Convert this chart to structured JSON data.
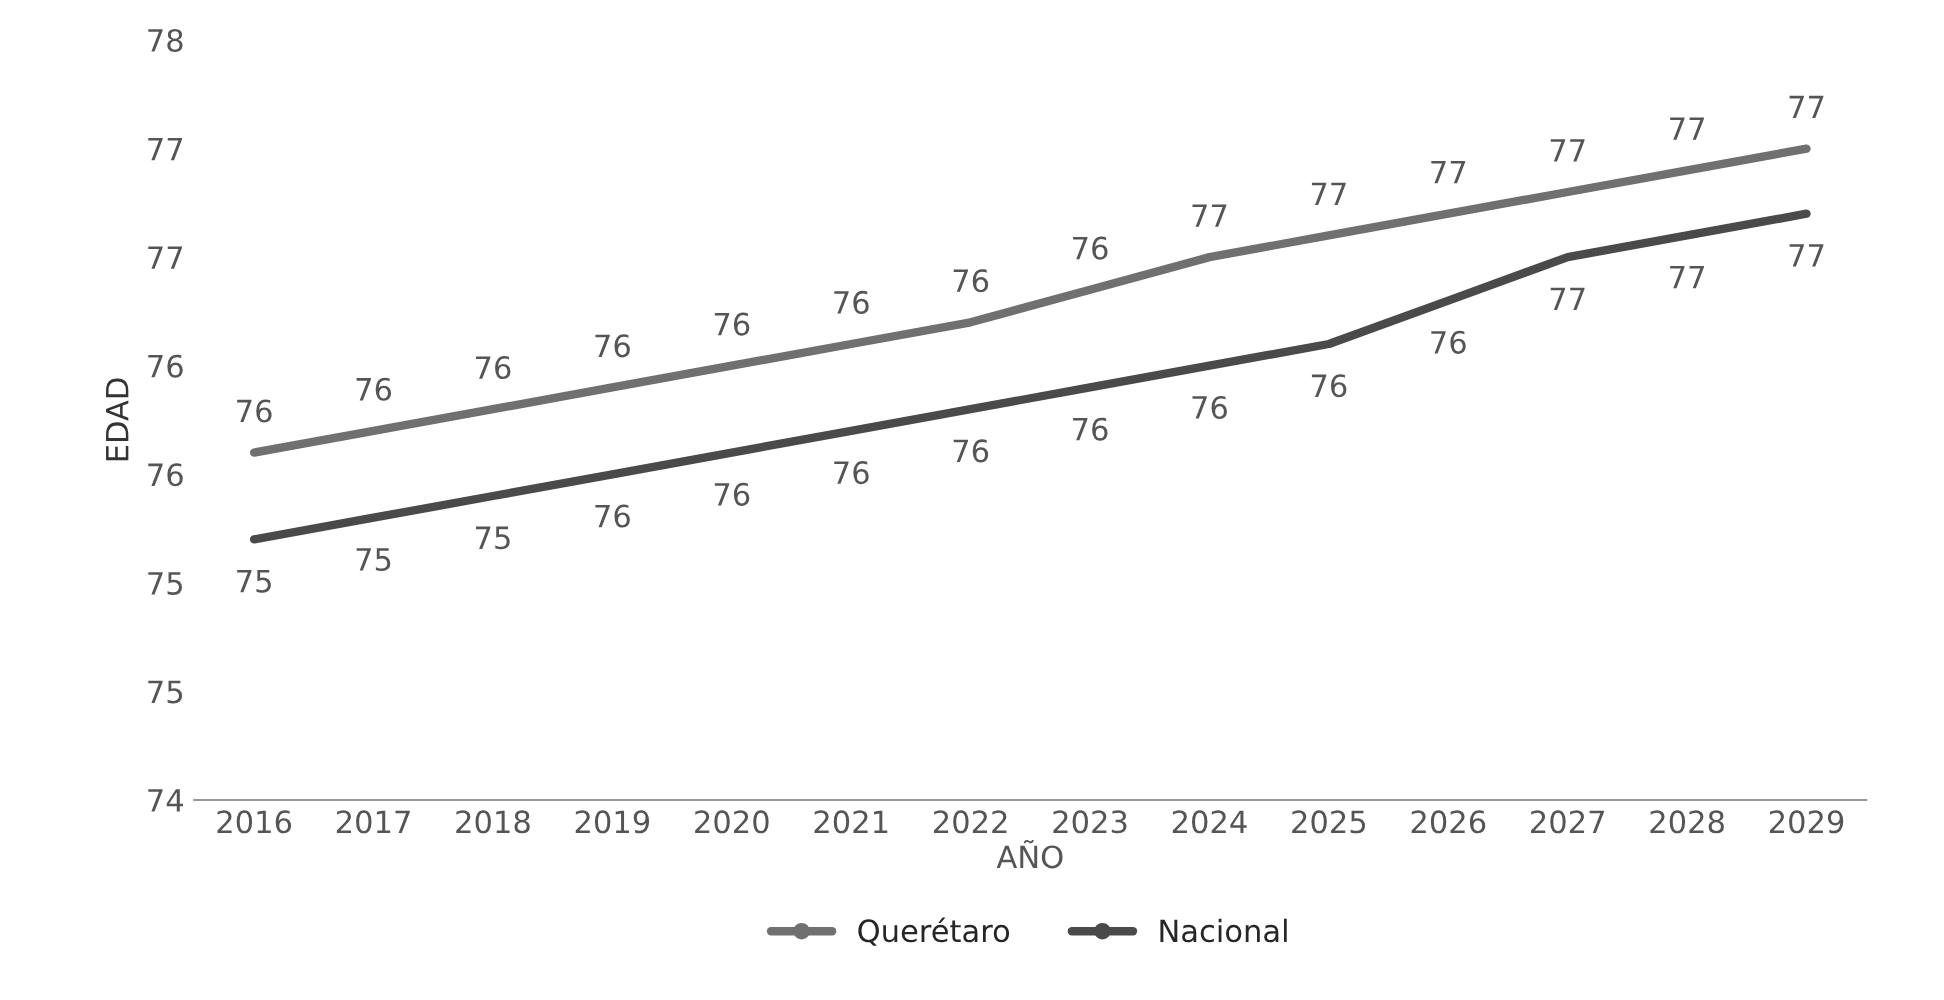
{
  "chart_data": {
    "type": "line",
    "xlabel": "AÑO",
    "ylabel": "EDAD",
    "categories": [
      "2016",
      "2017",
      "2018",
      "2019",
      "2020",
      "2021",
      "2022",
      "2023",
      "2024",
      "2025",
      "2026",
      "2027",
      "2028",
      "2029"
    ],
    "series": [
      {
        "name": "Querétaro",
        "color": "#707070",
        "values": [
          75.6,
          75.7,
          75.8,
          75.9,
          76.0,
          76.1,
          76.2,
          76.35,
          76.5,
          76.6,
          76.7,
          76.8,
          76.9,
          77.0
        ],
        "value_labels": [
          "76",
          "76",
          "76",
          "76",
          "76",
          "76",
          "76",
          "76",
          "77",
          "77",
          "77",
          "77",
          "77",
          "77"
        ]
      },
      {
        "name": "Nacional",
        "color": "#4a4a4a",
        "values": [
          75.2,
          75.3,
          75.4,
          75.5,
          75.6,
          75.7,
          75.8,
          75.9,
          76.0,
          76.1,
          76.3,
          76.5,
          76.6,
          76.7
        ],
        "value_labels": [
          "75",
          "75",
          "75",
          "76",
          "76",
          "76",
          "76",
          "76",
          "76",
          "76",
          "76",
          "77",
          "77",
          "77"
        ]
      }
    ],
    "ylim": [
      74,
      77.5
    ],
    "yticks": [
      {
        "value": 74,
        "label": "74"
      },
      {
        "value": 74.5,
        "label": "75"
      },
      {
        "value": 75,
        "label": "75"
      },
      {
        "value": 75.5,
        "label": "76"
      },
      {
        "value": 76,
        "label": "76"
      },
      {
        "value": 76.5,
        "label": "77"
      },
      {
        "value": 77,
        "label": "77"
      },
      {
        "value": 77.5,
        "label": "78"
      }
    ],
    "grid": false,
    "legend": "bottom",
    "marker": "none",
    "line_style": "solid"
  }
}
